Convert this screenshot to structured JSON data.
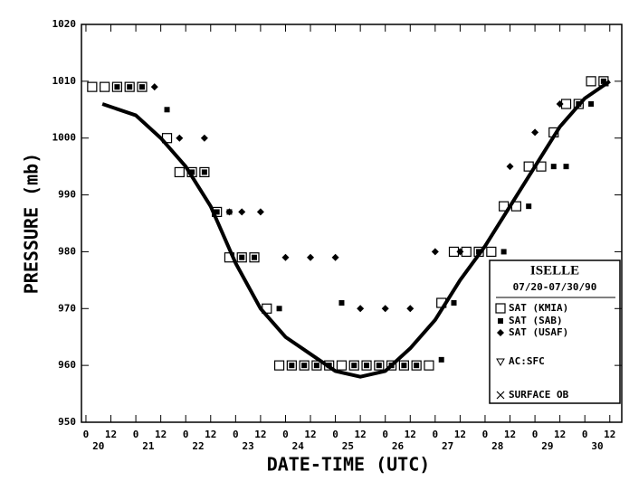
{
  "chart_data": {
    "type": "scatter",
    "xlabel": "DATE-TIME (UTC)",
    "ylabel": "PRESSURE (mb)",
    "legend_title": "ISELLE",
    "legend_subtitle": "07/20-07/30/90",
    "xlim": [
      19.91,
      30.74
    ],
    "ylim": [
      950,
      1020
    ],
    "yticks": [
      950,
      960,
      970,
      980,
      990,
      1000,
      1010,
      1020
    ],
    "xticks": [
      {
        "value": 20,
        "label": "0"
      },
      {
        "value": 20.5,
        "label": "12"
      },
      {
        "value": 21,
        "label": "0"
      },
      {
        "value": 21.5,
        "label": "12"
      },
      {
        "value": 22,
        "label": "0"
      },
      {
        "value": 22.5,
        "label": "12"
      },
      {
        "value": 23,
        "label": "0"
      },
      {
        "value": 23.5,
        "label": "12"
      },
      {
        "value": 24,
        "label": "0"
      },
      {
        "value": 24.5,
        "label": "12"
      },
      {
        "value": 25,
        "label": "0"
      },
      {
        "value": 25.5,
        "label": "12"
      },
      {
        "value": 26,
        "label": "0"
      },
      {
        "value": 26.5,
        "label": "12"
      },
      {
        "value": 27,
        "label": "0"
      },
      {
        "value": 27.5,
        "label": "12"
      },
      {
        "value": 28,
        "label": "0"
      },
      {
        "value": 28.5,
        "label": "12"
      },
      {
        "value": 29,
        "label": "0"
      },
      {
        "value": 29.5,
        "label": "12"
      },
      {
        "value": 30,
        "label": "0"
      },
      {
        "value": 30.5,
        "label": "12"
      }
    ],
    "day_labels": [
      {
        "value": 20.25,
        "label": "20"
      },
      {
        "value": 21.25,
        "label": "21"
      },
      {
        "value": 22.25,
        "label": "22"
      },
      {
        "value": 23.25,
        "label": "23"
      },
      {
        "value": 24.25,
        "label": "24"
      },
      {
        "value": 25.25,
        "label": "25"
      },
      {
        "value": 26.25,
        "label": "26"
      },
      {
        "value": 27.25,
        "label": "27"
      },
      {
        "value": 28.25,
        "label": "28"
      },
      {
        "value": 29.25,
        "label": "29"
      },
      {
        "value": 30.25,
        "label": "30"
      }
    ],
    "series": [
      {
        "name": "SAT (KMIA)",
        "marker": "open-square",
        "color": "#000000",
        "x": [
          20.125,
          20.375,
          20.625,
          20.875,
          21.125,
          21.625,
          21.875,
          22.125,
          22.375,
          22.625,
          22.875,
          23.125,
          23.375,
          23.625,
          23.875,
          24.125,
          24.375,
          24.625,
          24.875,
          25.125,
          25.375,
          25.625,
          25.875,
          26.125,
          26.375,
          26.625,
          26.875,
          27.125,
          27.375,
          27.625,
          27.875,
          28.125,
          28.375,
          28.625,
          28.875,
          29.125,
          29.375,
          29.625,
          29.875,
          30.125,
          30.375
        ],
        "values": [
          1009,
          1009,
          1009,
          1009,
          1009,
          1000,
          994,
          994,
          994,
          987,
          979,
          979,
          979,
          970,
          960,
          960,
          960,
          960,
          960,
          960,
          960,
          960,
          960,
          960,
          960,
          960,
          960,
          971,
          980,
          980,
          980,
          980,
          988,
          988,
          995,
          995,
          1001,
          1006,
          1006,
          1010,
          1010
        ]
      },
      {
        "name": "SAT (SAB)",
        "marker": "filled-square",
        "color": "#000000",
        "x": [
          20.625,
          20.875,
          21.125,
          21.625,
          22.125,
          22.375,
          22.625,
          22.875,
          23.125,
          23.375,
          23.875,
          24.125,
          24.375,
          24.625,
          24.875,
          25.125,
          25.375,
          25.625,
          25.875,
          26.125,
          26.375,
          26.625,
          27.125,
          27.375,
          27.875,
          28.375,
          28.875,
          29.375,
          29.625,
          29.875,
          30.125,
          30.375
        ],
        "values": [
          1009,
          1009,
          1009,
          1005,
          994,
          994,
          987,
          987,
          979,
          979,
          970,
          960,
          960,
          960,
          960,
          971,
          960,
          960,
          960,
          960,
          960,
          960,
          961,
          971,
          980,
          980,
          988,
          995,
          995,
          1006,
          1006,
          1010
        ]
      },
      {
        "name": "SAT (USAF)",
        "marker": "diamond",
        "color": "#000000",
        "x": [
          21.375,
          21.875,
          22.375,
          22.875,
          23.125,
          23.5,
          24.0,
          24.5,
          25.0,
          25.5,
          26.0,
          26.5,
          27.0,
          27.5,
          28.5,
          29.0,
          29.5
        ],
        "values": [
          1009,
          1000,
          1000,
          987,
          987,
          987,
          979,
          979,
          979,
          970,
          970,
          970,
          980,
          980,
          995,
          1001,
          1006
        ]
      },
      {
        "name": "AC:SFC",
        "marker": "triangle",
        "color": "#000000",
        "x": [],
        "values": []
      },
      {
        "name": "SURFACE OB",
        "marker": "cross",
        "color": "#000000",
        "x": [],
        "values": []
      },
      {
        "marker": "line",
        "color": "#000000",
        "x": [
          20.33,
          21.0,
          21.5,
          22.0,
          22.5,
          23.0,
          23.5,
          24.0,
          24.5,
          25.0,
          25.5,
          26.0,
          26.5,
          27.0,
          27.5,
          28.0,
          28.5,
          29.0,
          29.5,
          30.0,
          30.5
        ],
        "values": [
          1006,
          1004,
          1000,
          995,
          988,
          978,
          970,
          965,
          962,
          959,
          958,
          959,
          963,
          968,
          975,
          981,
          988,
          995,
          1002,
          1007,
          1010
        ]
      }
    ]
  }
}
